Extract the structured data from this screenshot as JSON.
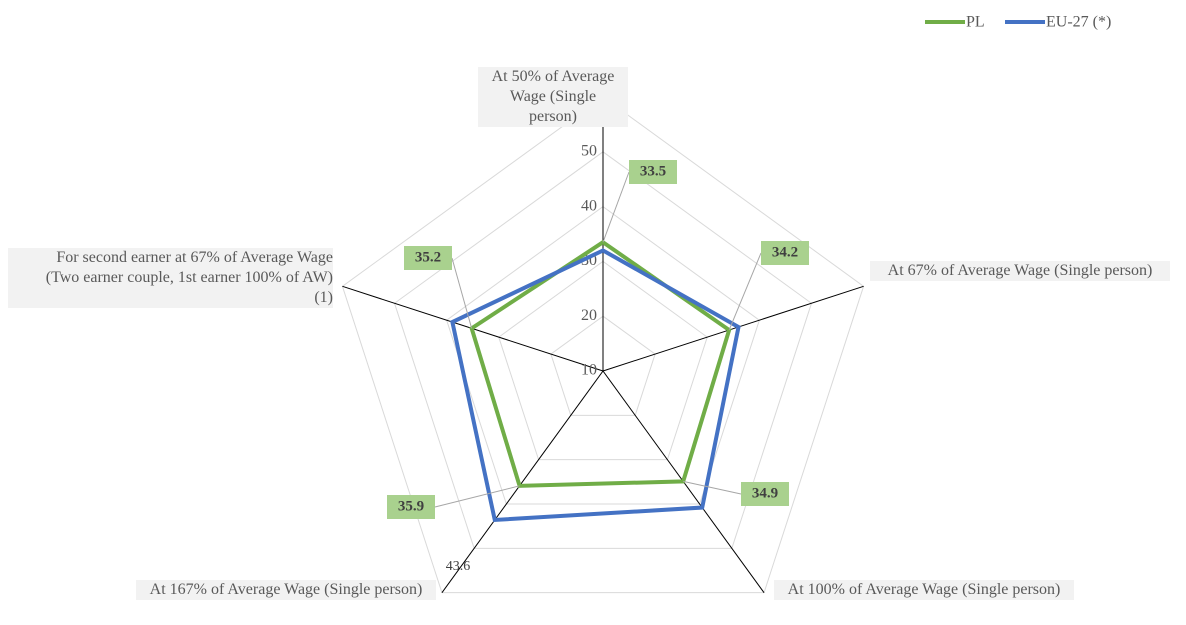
{
  "chart_data": {
    "type": "radar",
    "categories": [
      "At 50% of Average Wage (Single person)",
      "At 67% of Average Wage (Single person)",
      "At 100% of Average Wage (Single person)",
      "At 167% of Average Wage (Single person)",
      "For second earner at 67% of Average Wage (Two earner couple, 1st earner 100% of AW) (1)"
    ],
    "series": [
      {
        "name": "PL",
        "color": "#70ad47",
        "values": [
          33.5,
          34.2,
          34.9,
          35.9,
          35.2
        ],
        "data_labels": [
          true,
          true,
          true,
          true,
          true
        ]
      },
      {
        "name": "EU-27 (*)",
        "color": "#4472c4",
        "values": [
          32,
          36,
          40.8,
          43.6,
          38.9
        ],
        "data_labels": [
          false,
          false,
          false,
          true,
          false
        ]
      }
    ],
    "ylim": [
      10,
      60
    ],
    "yticks": [
      10,
      20,
      30,
      40,
      50,
      60
    ],
    "grid": true,
    "legend": "top-right"
  }
}
